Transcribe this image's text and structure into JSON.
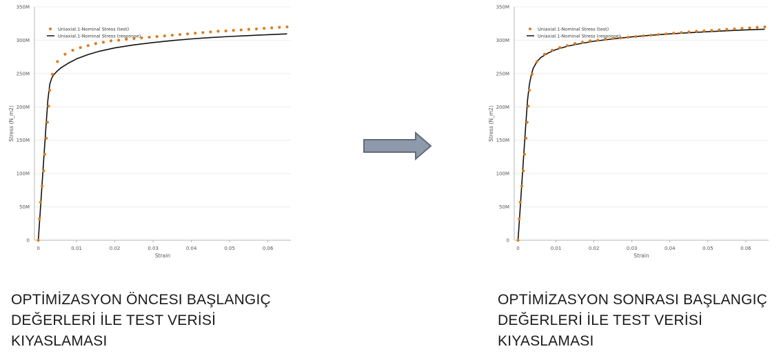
{
  "chart_data": [
    {
      "type": "scatter+line",
      "xlabel": "Strain",
      "ylabel": "Stress (N_m2)",
      "xlim": [
        -0.001,
        0.066
      ],
      "ylim": [
        0,
        350000000
      ],
      "x_ticks": [
        "0",
        "0.01",
        "0.02",
        "0.03",
        "0.04",
        "0.05",
        "0.06"
      ],
      "y_ticks": [
        "0",
        "50M",
        "100M",
        "150M",
        "200M",
        "250M",
        "300M",
        "350M"
      ],
      "grid": "horizontal",
      "legend_position": "top-left",
      "series": [
        {
          "name": "Uniaxial.1-Nominal Stress (test)",
          "kind": "markers",
          "color": "#e07b1a",
          "x": [
            0.0,
            0.0003,
            0.0006,
            0.001,
            0.0014,
            0.0017,
            0.0021,
            0.0024,
            0.0027,
            0.003,
            0.0037,
            0.005,
            0.007,
            0.009,
            0.011,
            0.013,
            0.015,
            0.017,
            0.019,
            0.021,
            0.023,
            0.025,
            0.027,
            0.029,
            0.031,
            0.033,
            0.035,
            0.037,
            0.039,
            0.041,
            0.043,
            0.045,
            0.047,
            0.049,
            0.051,
            0.053,
            0.055,
            0.057,
            0.059,
            0.061,
            0.063,
            0.065
          ],
          "y": [
            0,
            32000000,
            57000000,
            81000000,
            104000000,
            129000000,
            153000000,
            177000000,
            201000000,
            225000000,
            249000000,
            268000000,
            279000000,
            285000000,
            289000000,
            292000000,
            295000000,
            297000000,
            299000000,
            300000000,
            301500000,
            302500000,
            303500000,
            304500000,
            305500000,
            306500000,
            307500000,
            308500000,
            309500000,
            310500000,
            311500000,
            312500000,
            313500000,
            314000000,
            314800000,
            315500000,
            316300000,
            317000000,
            317800000,
            318500000,
            319300000,
            320000000
          ]
        },
        {
          "name": "Uniaxial.1-Nominal Stress (response)",
          "kind": "line",
          "color": "#111111",
          "x": [
            0.0,
            0.0005,
            0.001,
            0.0015,
            0.002,
            0.0025,
            0.003,
            0.0035,
            0.004,
            0.005,
            0.006,
            0.008,
            0.01,
            0.013,
            0.016,
            0.02,
            0.025,
            0.03,
            0.035,
            0.04,
            0.045,
            0.05,
            0.055,
            0.06,
            0.065
          ],
          "y": [
            0,
            42000000,
            85000000,
            128000000,
            170000000,
            210000000,
            234000000,
            243000000,
            248000000,
            254000000,
            259000000,
            266000000,
            272000000,
            278500000,
            283500000,
            288500000,
            293000000,
            296500000,
            299500000,
            302000000,
            304000000,
            305600000,
            307000000,
            308300000,
            309500000
          ]
        }
      ]
    },
    {
      "type": "scatter+line",
      "xlabel": "Strain",
      "ylabel": "Stress (N_m2)",
      "xlim": [
        -0.001,
        0.066
      ],
      "ylim": [
        0,
        350000000
      ],
      "x_ticks": [
        "0",
        "0.01",
        "0.02",
        "0.03",
        "0.04",
        "0.05",
        "0.06"
      ],
      "y_ticks": [
        "0",
        "50M",
        "100M",
        "150M",
        "200M",
        "250M",
        "300M",
        "350M"
      ],
      "grid": "horizontal",
      "legend_position": "top-left",
      "series": [
        {
          "name": "Uniaxial.1-Nominal Stress (test)",
          "kind": "markers",
          "color": "#e07b1a",
          "x": [
            0.0,
            0.0003,
            0.0006,
            0.001,
            0.0014,
            0.0017,
            0.0021,
            0.0024,
            0.0027,
            0.003,
            0.0037,
            0.005,
            0.007,
            0.009,
            0.011,
            0.013,
            0.015,
            0.017,
            0.019,
            0.021,
            0.023,
            0.025,
            0.027,
            0.029,
            0.031,
            0.033,
            0.035,
            0.037,
            0.039,
            0.041,
            0.043,
            0.045,
            0.047,
            0.049,
            0.051,
            0.053,
            0.055,
            0.057,
            0.059,
            0.061,
            0.063,
            0.065
          ],
          "y": [
            0,
            32000000,
            57000000,
            81000000,
            104000000,
            129000000,
            153000000,
            177000000,
            201000000,
            225000000,
            249000000,
            268000000,
            279000000,
            285000000,
            289000000,
            292000000,
            295000000,
            297000000,
            299000000,
            300000000,
            301500000,
            302500000,
            303500000,
            304500000,
            305500000,
            306500000,
            307500000,
            308500000,
            309500000,
            310500000,
            311500000,
            312500000,
            313500000,
            314000000,
            314800000,
            315500000,
            316300000,
            317000000,
            317800000,
            318500000,
            319300000,
            320000000
          ]
        },
        {
          "name": "Uniaxial.1-Nominal Stress (response)",
          "kind": "line",
          "color": "#111111",
          "x": [
            0.0,
            0.0005,
            0.001,
            0.0015,
            0.002,
            0.0025,
            0.003,
            0.0035,
            0.004,
            0.005,
            0.006,
            0.008,
            0.01,
            0.013,
            0.016,
            0.02,
            0.025,
            0.03,
            0.035,
            0.04,
            0.045,
            0.05,
            0.055,
            0.06,
            0.065
          ],
          "y": [
            0,
            42000000,
            85000000,
            128000000,
            170000000,
            210000000,
            234000000,
            248000000,
            258000000,
            268000000,
            274000000,
            281000000,
            286000000,
            291000000,
            294500000,
            298500000,
            302000000,
            305000000,
            307500000,
            309500000,
            311200000,
            312800000,
            314200000,
            315500000,
            316500000
          ]
        }
      ]
    }
  ],
  "arrow": {
    "fill": "#8e99aa",
    "stroke": "#5f6b7b"
  },
  "captions": {
    "left": [
      "OPTİMİZASYON ÖNCESI BAŞLANGIÇ",
      "DEĞERLERİ İLE TEST VERİSİ",
      "KIYASLAMASI"
    ],
    "right": [
      "OPTİMİZASYON SONRASI BAŞLANGIÇ",
      "DEĞERLERİ İLE TEST VERİSİ",
      "KIYASLAMASI"
    ]
  }
}
